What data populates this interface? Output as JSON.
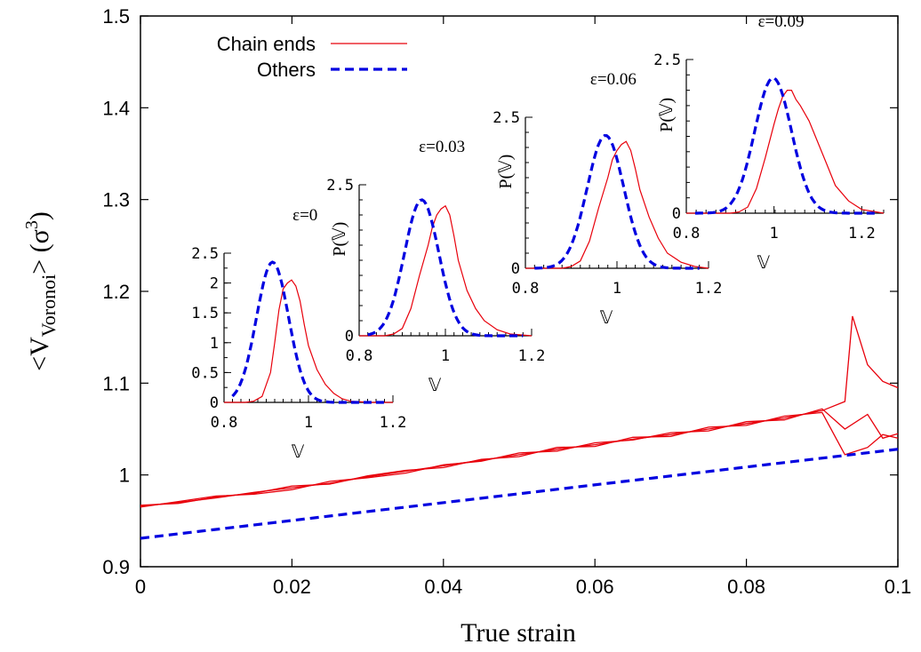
{
  "chart_data": {
    "type": "line",
    "xlabel": "True strain",
    "ylabel_main": "<V",
    "ylabel_sub": "Voronoi",
    "ylabel_rest": "> (σ",
    "ylabel_sup": "3",
    "ylabel_close": ")",
    "xlim": [
      0,
      0.1
    ],
    "ylim": [
      0.9,
      1.5
    ],
    "x_ticks": [
      0,
      0.02,
      0.04,
      0.06,
      0.08,
      0.1
    ],
    "x_tick_labels": [
      "0",
      "0.02",
      "0.04",
      "0.06",
      "0.08",
      "0.1"
    ],
    "y_ticks": [
      0.9,
      1.0,
      1.1,
      1.2,
      1.3,
      1.4,
      1.5
    ],
    "y_tick_labels": [
      "0.9",
      "1",
      "1.1",
      "1.2",
      "1.3",
      "1.4",
      "1.5"
    ],
    "legend": {
      "position": "top-left",
      "entries": [
        {
          "label": "Chain ends",
          "color": "#e8000b",
          "style": "solid"
        },
        {
          "label": "Others",
          "color": "#0000e0",
          "style": "dashed"
        }
      ]
    },
    "series": [
      {
        "name": "Chain ends",
        "color": "#e8000b",
        "style": "solid",
        "x": [
          0,
          0.005,
          0.01,
          0.015,
          0.02,
          0.025,
          0.03,
          0.035,
          0.04,
          0.045,
          0.05,
          0.055,
          0.06,
          0.065,
          0.07,
          0.075,
          0.08,
          0.085,
          0.09,
          0.093,
          0.094,
          0.096,
          0.098,
          0.1
        ],
        "y": [
          0.966,
          0.97,
          0.975,
          0.981,
          0.986,
          0.991,
          0.998,
          1.004,
          1.01,
          1.016,
          1.022,
          1.028,
          1.033,
          1.039,
          1.044,
          1.05,
          1.056,
          1.062,
          1.07,
          1.08,
          1.173,
          1.12,
          1.102,
          1.095
        ]
      },
      {
        "name": "",
        "color": "#e8000b",
        "style": "solid",
        "x": [
          0,
          0.005,
          0.01,
          0.015,
          0.02,
          0.025,
          0.03,
          0.035,
          0.04,
          0.045,
          0.05,
          0.055,
          0.06,
          0.065,
          0.07,
          0.075,
          0.08,
          0.085,
          0.09,
          0.093,
          0.096,
          0.098,
          0.1
        ],
        "y": [
          0.965,
          0.971,
          0.977,
          0.979,
          0.984,
          0.993,
          0.997,
          1.002,
          1.011,
          1.015,
          1.024,
          1.026,
          1.035,
          1.038,
          1.046,
          1.048,
          1.058,
          1.06,
          1.072,
          1.05,
          1.066,
          1.04,
          1.045
        ]
      },
      {
        "name": "",
        "color": "#e8000b",
        "style": "solid",
        "x": [
          0,
          0.005,
          0.01,
          0.015,
          0.02,
          0.025,
          0.03,
          0.035,
          0.04,
          0.045,
          0.05,
          0.055,
          0.06,
          0.065,
          0.07,
          0.075,
          0.08,
          0.085,
          0.09,
          0.093,
          0.096,
          0.098,
          0.1
        ],
        "y": [
          0.967,
          0.969,
          0.976,
          0.98,
          0.988,
          0.99,
          0.999,
          1.005,
          1.008,
          1.017,
          1.02,
          1.03,
          1.031,
          1.041,
          1.042,
          1.052,
          1.054,
          1.064,
          1.068,
          1.022,
          1.03,
          1.044,
          1.04
        ]
      },
      {
        "name": "Others",
        "color": "#0000e0",
        "style": "dashed",
        "x": [
          0,
          0.1
        ],
        "y": [
          0.931,
          1.028
        ]
      }
    ],
    "insets": [
      {
        "title": "ε=0",
        "xlabel": "𝕍",
        "ylabel": "",
        "xlim": [
          0.8,
          1.2
        ],
        "ylim": [
          0,
          2.5
        ],
        "x_ticks": [
          0.8,
          1.0,
          1.2
        ],
        "x_tick_labels": [
          "0.8",
          "1",
          "1.2"
        ],
        "y_ticks": [
          0,
          0.5,
          1.0,
          1.5,
          2.0,
          2.5
        ],
        "y_tick_labels": [
          "0",
          "0.5",
          "1",
          "1.5",
          "2",
          "2.5"
        ],
        "chain_ends": {
          "x": [
            0.8,
            0.85,
            0.87,
            0.89,
            0.91,
            0.92,
            0.93,
            0.94,
            0.95,
            0.96,
            0.97,
            0.98,
            0.99,
            1.0,
            1.02,
            1.04,
            1.06,
            1.08,
            1.1,
            1.15,
            1.2
          ],
          "y": [
            0,
            0,
            0.02,
            0.1,
            0.5,
            1.0,
            1.55,
            1.9,
            2.0,
            2.05,
            1.95,
            1.7,
            1.3,
            0.95,
            0.55,
            0.3,
            0.15,
            0.06,
            0.02,
            0,
            0
          ]
        },
        "others": {
          "mu": 0.915,
          "sigma": 0.038,
          "peak": 2.35
        }
      },
      {
        "title": "ε=0.03",
        "xlabel": "𝕍",
        "ylabel": "P(𝕍)",
        "xlim": [
          0.8,
          1.2
        ],
        "ylim": [
          0,
          2.5
        ],
        "x_ticks": [
          0.8,
          1.0,
          1.2
        ],
        "x_tick_labels": [
          "0.8",
          "1",
          "1.2"
        ],
        "y_ticks": [
          0,
          2.5
        ],
        "y_tick_labels": [
          "0",
          "2.5"
        ],
        "chain_ends": {
          "x": [
            0.8,
            0.86,
            0.88,
            0.9,
            0.92,
            0.94,
            0.96,
            0.97,
            0.98,
            0.99,
            1.0,
            1.01,
            1.02,
            1.03,
            1.05,
            1.07,
            1.09,
            1.12,
            1.15,
            1.2
          ],
          "y": [
            0,
            0,
            0.03,
            0.12,
            0.45,
            1.0,
            1.5,
            1.8,
            2.0,
            2.1,
            2.15,
            2.0,
            1.65,
            1.25,
            0.75,
            0.45,
            0.25,
            0.1,
            0.03,
            0
          ]
        },
        "others": {
          "mu": 0.945,
          "sigma": 0.04,
          "peak": 2.25
        }
      },
      {
        "title": "ε=0.06",
        "xlabel": "𝕍",
        "ylabel": "P(𝕍)",
        "xlim": [
          0.8,
          1.2
        ],
        "ylim": [
          0,
          2.5
        ],
        "x_ticks": [
          0.8,
          1.0,
          1.2
        ],
        "x_tick_labels": [
          "0.8",
          "1",
          "1.2"
        ],
        "y_ticks": [
          0,
          2.5
        ],
        "y_tick_labels": [
          "0",
          "2.5"
        ],
        "chain_ends": {
          "x": [
            0.8,
            0.88,
            0.9,
            0.92,
            0.94,
            0.96,
            0.98,
            0.99,
            1.0,
            1.01,
            1.02,
            1.03,
            1.04,
            1.05,
            1.07,
            1.09,
            1.11,
            1.14,
            1.17,
            1.2
          ],
          "y": [
            0,
            0,
            0.03,
            0.12,
            0.45,
            1.0,
            1.5,
            1.8,
            1.95,
            2.05,
            2.1,
            1.95,
            1.65,
            1.3,
            0.85,
            0.5,
            0.25,
            0.1,
            0.03,
            0
          ]
        },
        "others": {
          "mu": 0.975,
          "sigma": 0.04,
          "peak": 2.2
        }
      },
      {
        "title": "ε=0.09",
        "xlabel": "𝕍",
        "ylabel": "P(𝕍)",
        "xlim": [
          0.8,
          1.25
        ],
        "ylim": [
          0,
          2.5
        ],
        "x_ticks": [
          0.8,
          1.0,
          1.2
        ],
        "x_tick_labels": [
          "0.8",
          "1",
          "1.2"
        ],
        "y_ticks": [
          0,
          2.5
        ],
        "y_tick_labels": [
          "0",
          "2.5"
        ],
        "chain_ends": {
          "x": [
            0.8,
            0.9,
            0.92,
            0.94,
            0.96,
            0.98,
            1.0,
            1.01,
            1.02,
            1.03,
            1.04,
            1.05,
            1.06,
            1.08,
            1.1,
            1.12,
            1.14,
            1.17,
            1.2,
            1.25
          ],
          "y": [
            0,
            0,
            0.02,
            0.1,
            0.4,
            0.9,
            1.45,
            1.7,
            1.9,
            2.0,
            2.0,
            1.85,
            1.75,
            1.5,
            1.15,
            0.8,
            0.45,
            0.2,
            0.06,
            0
          ]
        },
        "others": {
          "mu": 0.998,
          "sigma": 0.042,
          "peak": 2.2
        }
      }
    ]
  }
}
